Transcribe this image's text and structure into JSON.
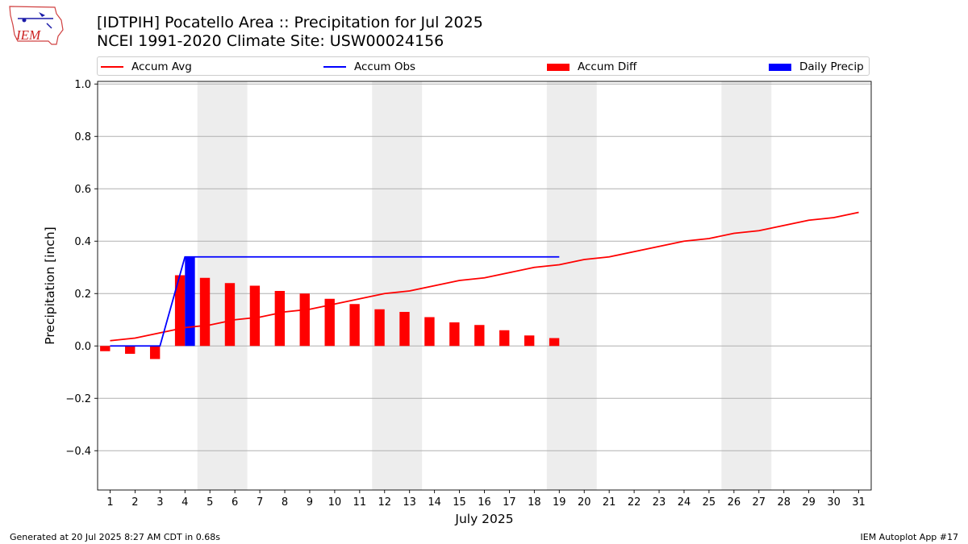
{
  "header": {
    "title_line1": "[IDTPIH] Pocatello Area :: Precipitation for Jul 2025",
    "title_line2": "NCEI 1991-2020 Climate Site: USW00024156"
  },
  "logo": {
    "text": "IEM"
  },
  "footer": {
    "left": "Generated at 20 Jul 2025 8:27 AM CDT in 0.68s",
    "right": "IEM Autoplot App #17"
  },
  "chart_data": {
    "type": "bar",
    "xlabel": "July 2025",
    "ylabel": "Precipitation [inch]",
    "xlim": [
      0.5,
      31.5
    ],
    "ylim": [
      -0.55,
      1.01
    ],
    "yticks": [
      -0.4,
      -0.2,
      0.0,
      0.2,
      0.4,
      0.6,
      0.8,
      1.0
    ],
    "ytick_labels": [
      "−0.4",
      "−0.2",
      "0.0",
      "0.2",
      "0.4",
      "0.6",
      "0.8",
      "1.0"
    ],
    "x": [
      1,
      2,
      3,
      4,
      5,
      6,
      7,
      8,
      9,
      10,
      11,
      12,
      13,
      14,
      15,
      16,
      17,
      18,
      19,
      20,
      21,
      22,
      23,
      24,
      25,
      26,
      27,
      28,
      29,
      30,
      31
    ],
    "grid": "horizontal",
    "weekend_shading": [
      [
        4.5,
        6.5
      ],
      [
        11.5,
        13.5
      ],
      [
        18.5,
        20.5
      ],
      [
        25.5,
        27.5
      ]
    ],
    "legend_position": "top",
    "legend": [
      {
        "name": "Accum Avg",
        "kind": "line",
        "color": "#ff0000"
      },
      {
        "name": "Accum Obs",
        "kind": "line",
        "color": "#0000ff"
      },
      {
        "name": "Accum Diff",
        "kind": "bar",
        "color": "#ff0000"
      },
      {
        "name": "Daily Precip",
        "kind": "bar",
        "color": "#0000ff"
      }
    ],
    "series": [
      {
        "name": "Accum Avg",
        "type": "line",
        "color": "#ff0000",
        "x": [
          1,
          2,
          3,
          4,
          5,
          6,
          7,
          8,
          9,
          10,
          11,
          12,
          13,
          14,
          15,
          16,
          17,
          18,
          19,
          20,
          21,
          22,
          23,
          24,
          25,
          26,
          27,
          28,
          29,
          30,
          31
        ],
        "values": [
          0.02,
          0.03,
          0.05,
          0.07,
          0.08,
          0.1,
          0.11,
          0.13,
          0.14,
          0.16,
          0.18,
          0.2,
          0.21,
          0.23,
          0.25,
          0.26,
          0.28,
          0.3,
          0.31,
          0.33,
          0.34,
          0.36,
          0.38,
          0.4,
          0.41,
          0.43,
          0.44,
          0.46,
          0.48,
          0.49,
          0.51
        ]
      },
      {
        "name": "Accum Obs",
        "type": "line",
        "color": "#0000ff",
        "x": [
          1,
          2,
          3,
          4,
          5,
          6,
          7,
          8,
          9,
          10,
          11,
          12,
          13,
          14,
          15,
          16,
          17,
          18,
          19
        ],
        "values": [
          0.0,
          0.0,
          0.0,
          0.34,
          0.34,
          0.34,
          0.34,
          0.34,
          0.34,
          0.34,
          0.34,
          0.34,
          0.34,
          0.34,
          0.34,
          0.34,
          0.34,
          0.34,
          0.34
        ]
      },
      {
        "name": "Accum Diff",
        "type": "bar",
        "color": "#ff0000",
        "x": [
          1,
          2,
          3,
          4,
          5,
          6,
          7,
          8,
          9,
          10,
          11,
          12,
          13,
          14,
          15,
          16,
          17,
          18,
          19
        ],
        "values": [
          -0.02,
          -0.03,
          -0.05,
          0.27,
          0.26,
          0.24,
          0.23,
          0.21,
          0.2,
          0.18,
          0.16,
          0.14,
          0.13,
          0.11,
          0.09,
          0.08,
          0.06,
          0.04,
          0.03
        ]
      },
      {
        "name": "Daily Precip",
        "type": "bar",
        "color": "#0000ff",
        "x": [
          1,
          2,
          3,
          4,
          5,
          6,
          7,
          8,
          9,
          10,
          11,
          12,
          13,
          14,
          15,
          16,
          17,
          18,
          19
        ],
        "values": [
          0,
          0,
          0,
          0.34,
          0,
          0,
          0,
          0,
          0,
          0,
          0,
          0,
          0,
          0,
          0,
          0,
          0,
          0,
          0
        ]
      }
    ]
  }
}
